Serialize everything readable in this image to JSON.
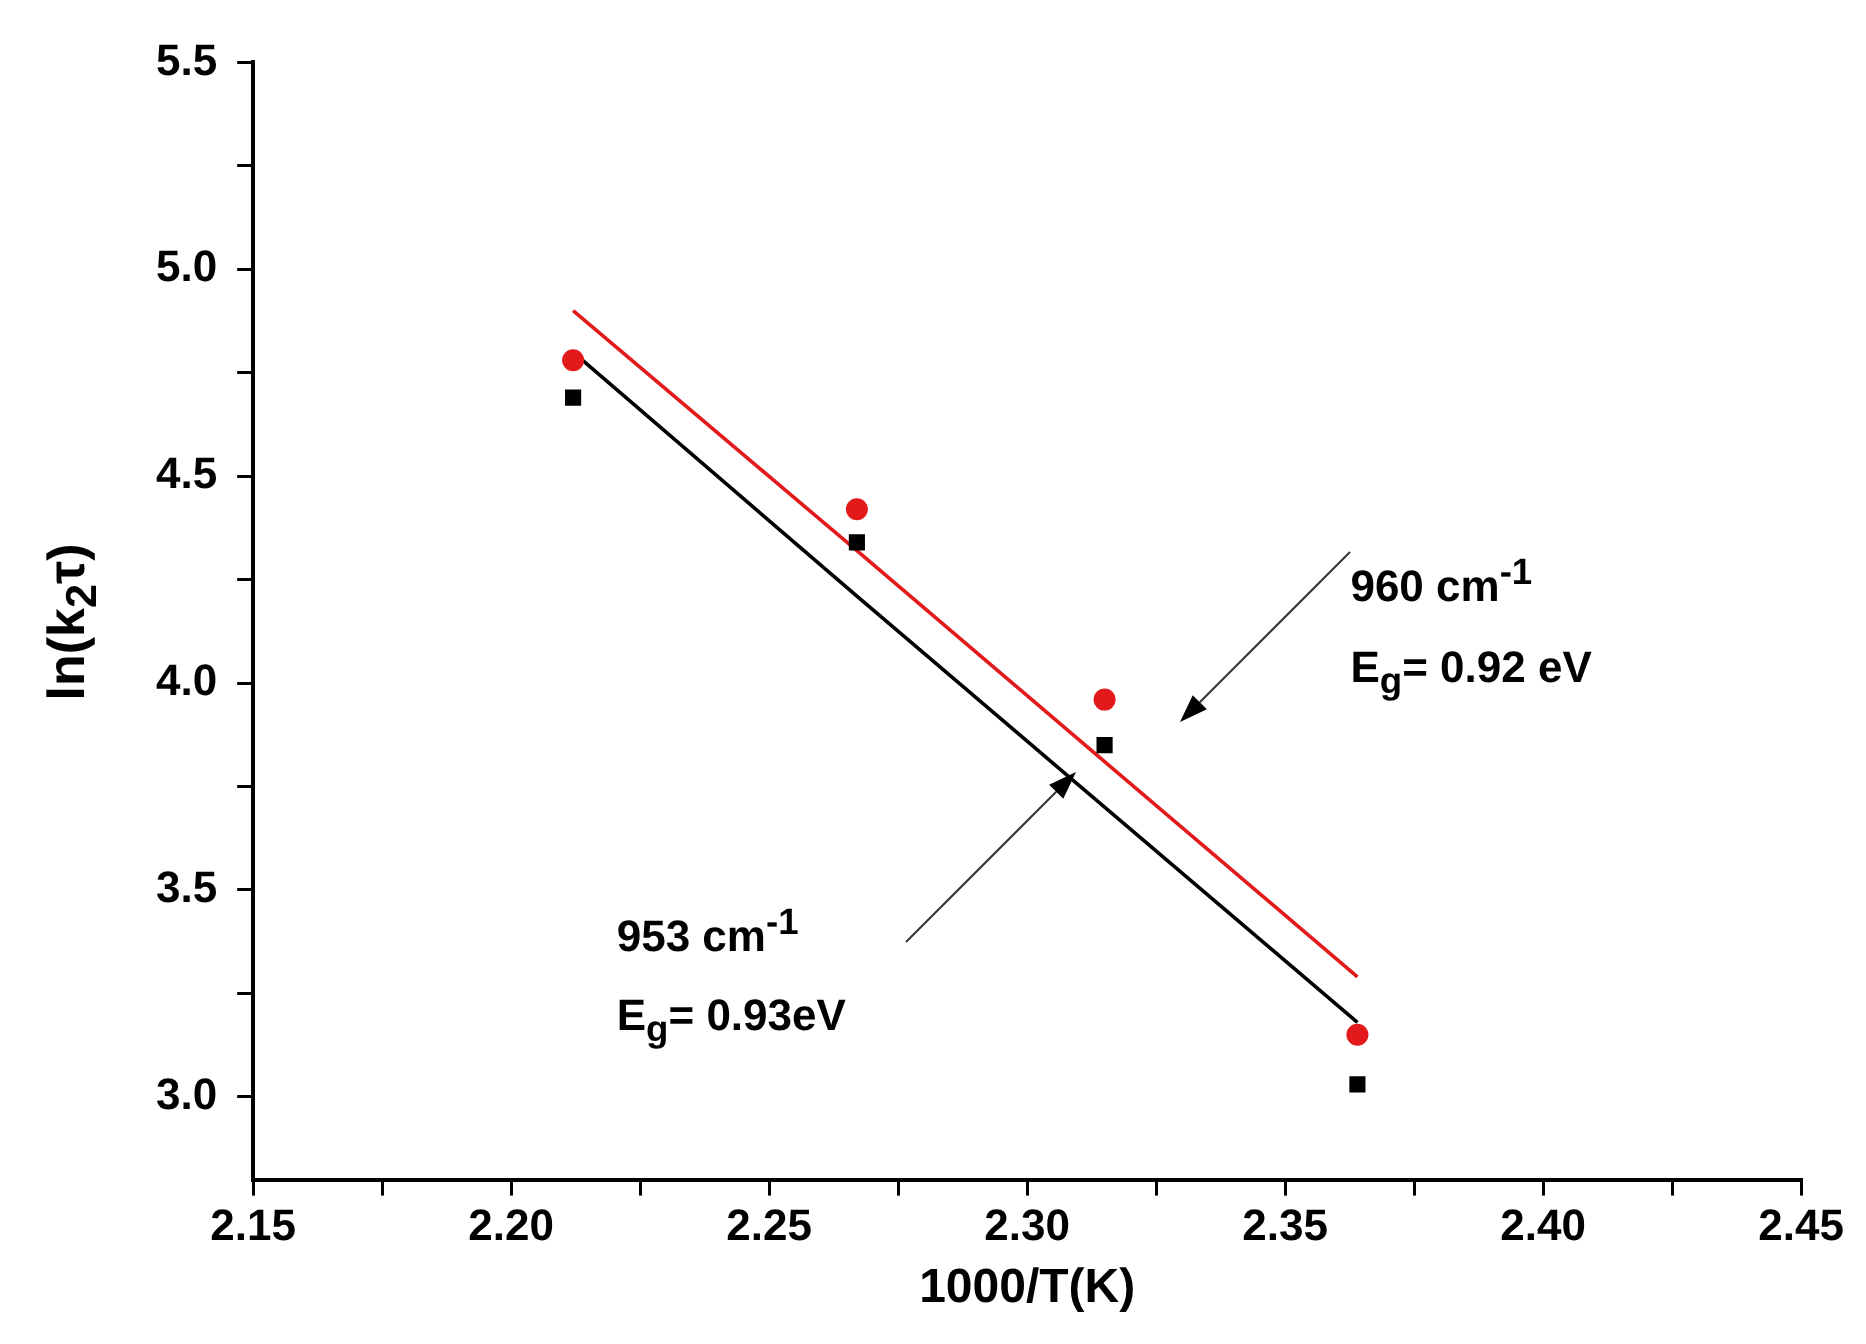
{
  "chart_data": {
    "type": "scatter",
    "xlabel": "1000/T(K)",
    "ylabel": "ln(k$_{2}$τ)",
    "x": [
      2.212,
      2.267,
      2.315,
      2.364
    ],
    "series": [
      {
        "marker": "circle",
        "color": "#e31a1c",
        "values": [
          4.78,
          4.42,
          3.96,
          3.15
        ]
      },
      {
        "marker": "square",
        "color": "#000000",
        "values": [
          4.69,
          4.34,
          3.85,
          3.03
        ]
      },
      {
        "type": "line",
        "marker": "none",
        "color": "#e31a1c",
        "values": [
          4.9,
          4.32,
          3.81,
          3.29
        ]
      },
      {
        "type": "line",
        "marker": "none",
        "color": "#000000",
        "values": [
          4.8,
          4.21,
          3.7,
          3.18
        ]
      }
    ],
    "xlim": [
      2.15,
      2.45
    ],
    "xticks": [
      {
        "value": 2.15,
        "label": "2.15"
      },
      {
        "value": 2.175,
        "label": null
      },
      {
        "value": 2.2,
        "label": "2.20"
      },
      {
        "value": 2.225,
        "label": null
      },
      {
        "value": 2.25,
        "label": "2.25"
      },
      {
        "value": 2.275,
        "label": null
      },
      {
        "value": 2.3,
        "label": "2.30"
      },
      {
        "value": 2.325,
        "label": null
      },
      {
        "value": 2.35,
        "label": "2.35"
      },
      {
        "value": 2.375,
        "label": null
      },
      {
        "value": 2.4,
        "label": "2.40"
      },
      {
        "value": 2.425,
        "label": null
      },
      {
        "value": 2.45,
        "label": "2.45"
      }
    ],
    "ylim": [
      2.8,
      5.5
    ],
    "yticks": [
      {
        "value": 3,
        "label": "3.0"
      },
      {
        "value": 3.25,
        "label": null
      },
      {
        "value": 3.5,
        "label": "3.5"
      },
      {
        "value": 3.75,
        "label": null
      },
      {
        "value": 4,
        "label": "4.0"
      },
      {
        "value": 4.25,
        "label": null
      },
      {
        "value": 4.5,
        "label": "4.5"
      },
      {
        "value": 4.75,
        "label": null
      },
      {
        "value": 5,
        "label": "5.0"
      },
      {
        "value": 5.25,
        "label": null
      },
      {
        "value": 5.5,
        "label": "5.5"
      }
    ],
    "grid": false,
    "legend": false,
    "annotations": [
      "960 cm$^{-1}$",
      "E$_{g}$= 0.92 eV",
      "953 cm$^{-1}$",
      "E$_{g}$= 0.93eV"
    ]
  }
}
